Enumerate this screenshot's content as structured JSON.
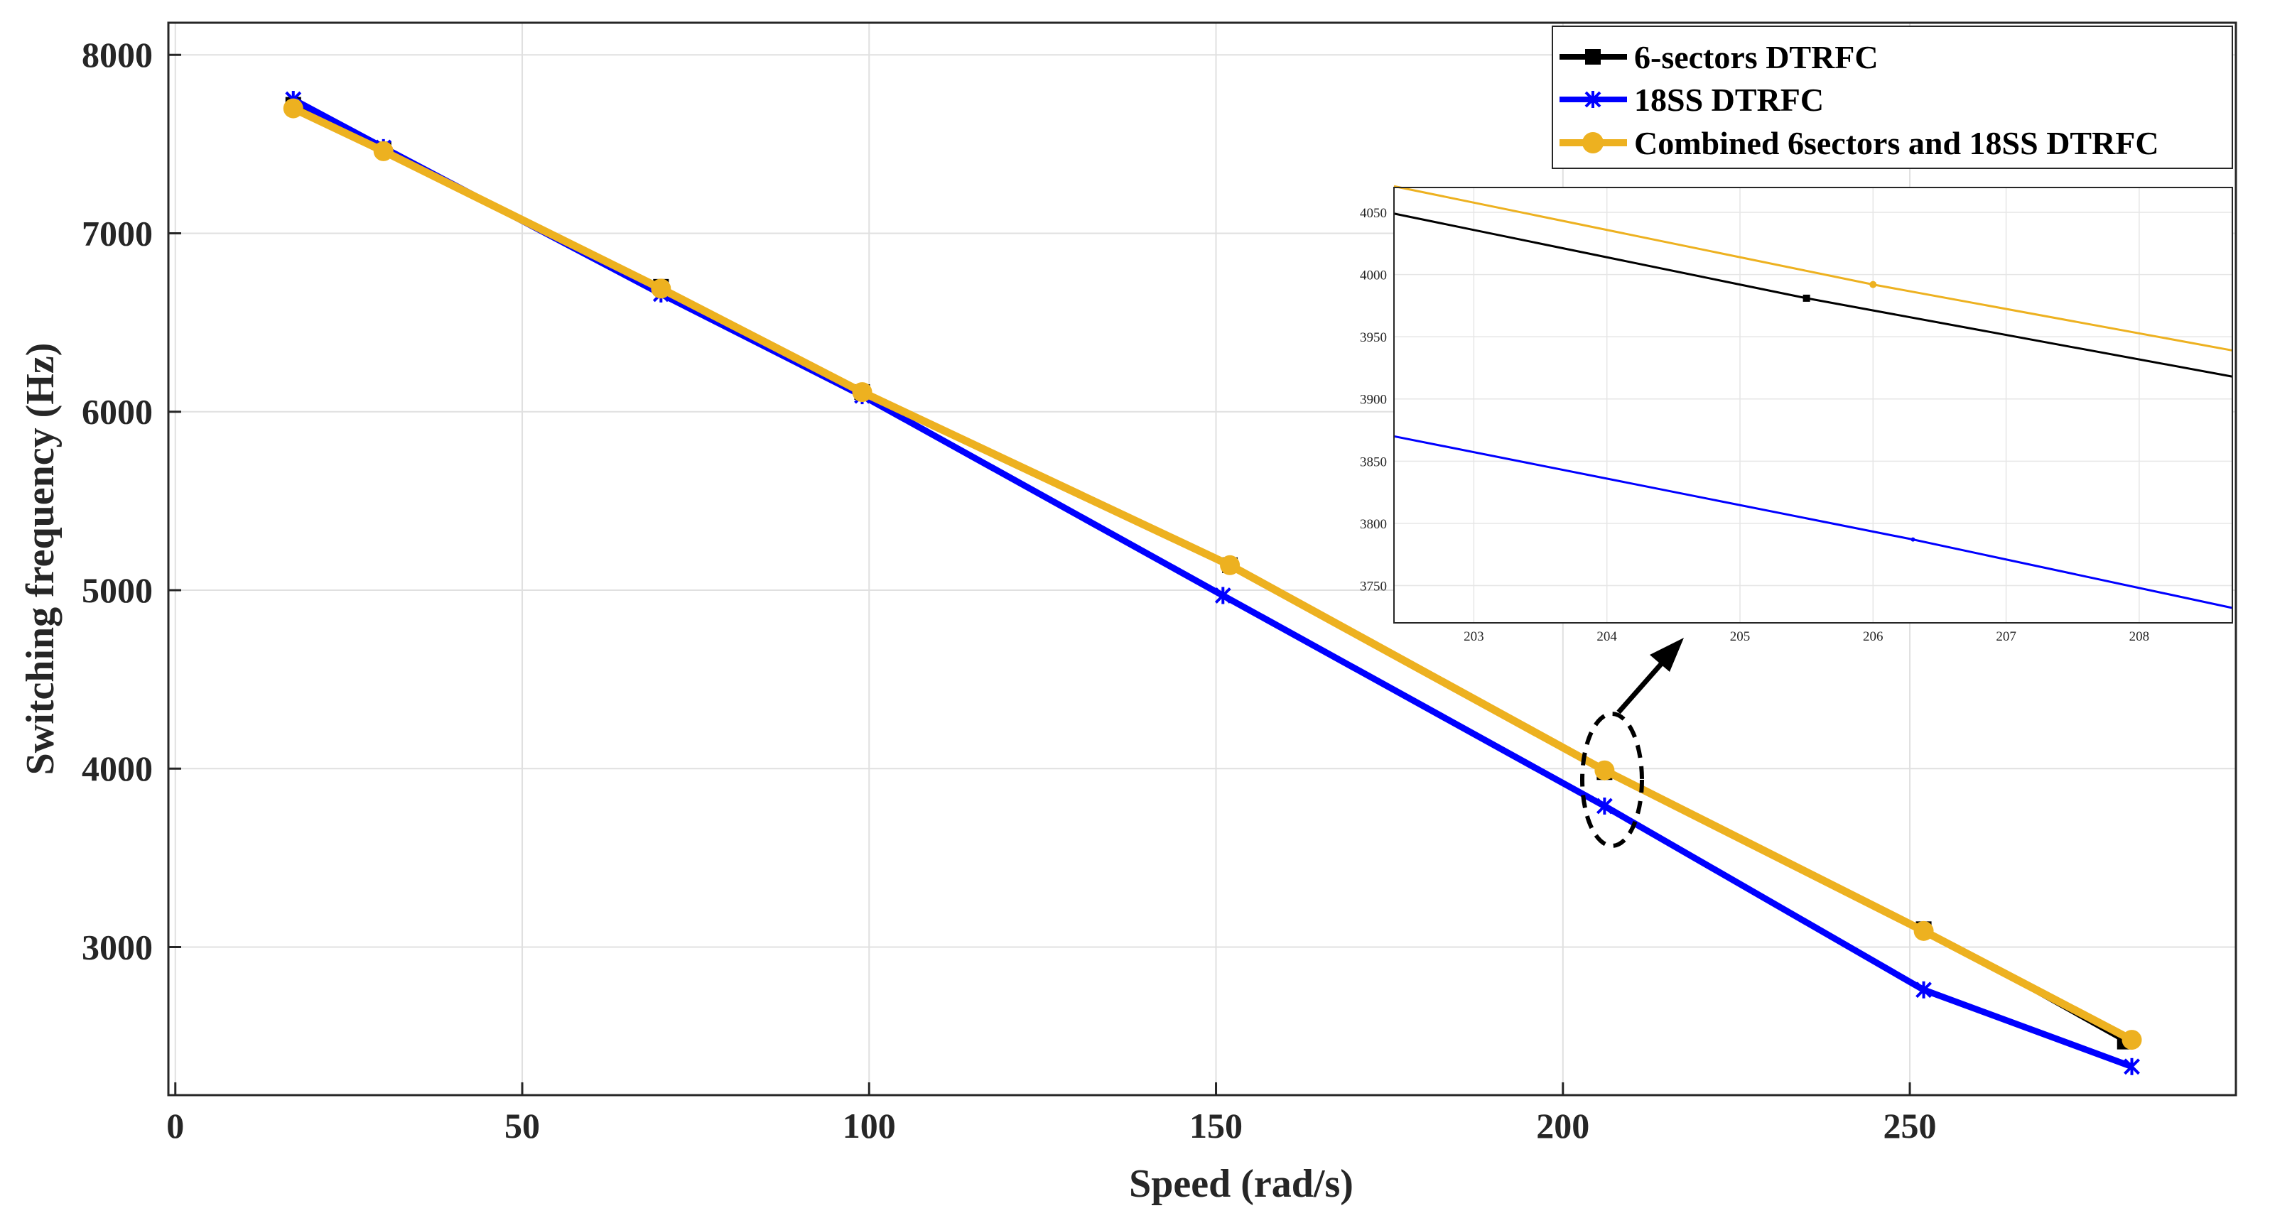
{
  "chart_data": {
    "type": "line",
    "title": "",
    "xlabel": "Speed (rad/s)",
    "ylabel": "Switching frequency (Hz)",
    "xlim": [
      -1,
      297
    ],
    "ylim": [
      2170,
      8180
    ],
    "xticks": [
      0,
      50,
      100,
      150,
      200,
      250
    ],
    "yticks": [
      3000,
      4000,
      5000,
      6000,
      7000,
      8000
    ],
    "grid": true,
    "legend_position": "top-right",
    "series": [
      {
        "name": "6-sectors DTRFC",
        "color": "#000000",
        "marker": "square",
        "x": [
          17,
          30,
          70,
          99,
          152,
          206,
          252,
          281
        ],
        "y": [
          7720,
          7470,
          6700,
          6110,
          5140,
          3980,
          3100,
          2470
        ]
      },
      {
        "name": "18SS DTRFC",
        "color": "#0000ff",
        "marker": "star",
        "x": [
          17,
          30,
          70,
          99,
          151,
          206,
          252,
          282
        ],
        "y": [
          7750,
          7480,
          6660,
          6090,
          4970,
          3790,
          2760,
          2330
        ]
      },
      {
        "name": "Combined 6sectors and 18SS DTRFC",
        "color": "#edb120",
        "marker": "circle",
        "x": [
          17,
          30,
          70,
          99,
          152,
          206,
          252,
          282
        ],
        "y": [
          7700,
          7460,
          6690,
          6110,
          5140,
          3990,
          3090,
          2480
        ]
      }
    ],
    "inset": {
      "xlim": [
        202.4,
        208.7
      ],
      "ylim": [
        3720,
        4070
      ],
      "xticks": [
        203,
        204,
        205,
        206,
        207,
        208
      ],
      "yticks": [
        3750,
        3800,
        3850,
        3900,
        3950,
        4000,
        4050
      ],
      "series": [
        {
          "name": "6-sectors DTRFC",
          "color": "#000000",
          "x": [
            202.4,
            205.5,
            208.7
          ],
          "y": [
            4049,
            3981,
            3918
          ],
          "marker_x": 205.5,
          "marker_y": 3981
        },
        {
          "name": "18SS DTRFC",
          "color": "#0000ff",
          "x": [
            202.4,
            206.3,
            208.7
          ],
          "y": [
            3870,
            3787,
            3732
          ],
          "marker_x": 206.3,
          "marker_y": 3787
        },
        {
          "name": "Combined 6sectors and 18SS DTRFC",
          "color": "#edb120",
          "x": [
            202.4,
            206.0,
            208.7
          ],
          "y": [
            4071,
            3992,
            3939
          ],
          "marker_x": 206.0,
          "marker_y": 3992
        }
      ]
    },
    "annotation": {
      "type": "ellipse-zoom-arrow",
      "center_x": 207,
      "center_y": 3910
    }
  }
}
